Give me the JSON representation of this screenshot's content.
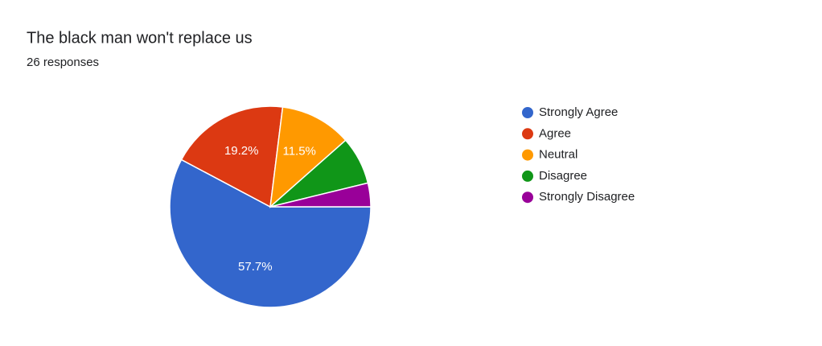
{
  "chart_data": {
    "type": "pie",
    "title": "The black man won't replace us",
    "subtitle": "26 responses",
    "categories": [
      "Strongly Agree",
      "Agree",
      "Neutral",
      "Disagree",
      "Strongly Disagree"
    ],
    "values": [
      57.7,
      19.2,
      11.5,
      7.7,
      3.8
    ],
    "value_labels": [
      "57.7%",
      "19.2%",
      "11.5%",
      null,
      null
    ],
    "colors": [
      "#3366cc",
      "#dc3912",
      "#ff9900",
      "#109618",
      "#990099"
    ],
    "legend": "right"
  }
}
